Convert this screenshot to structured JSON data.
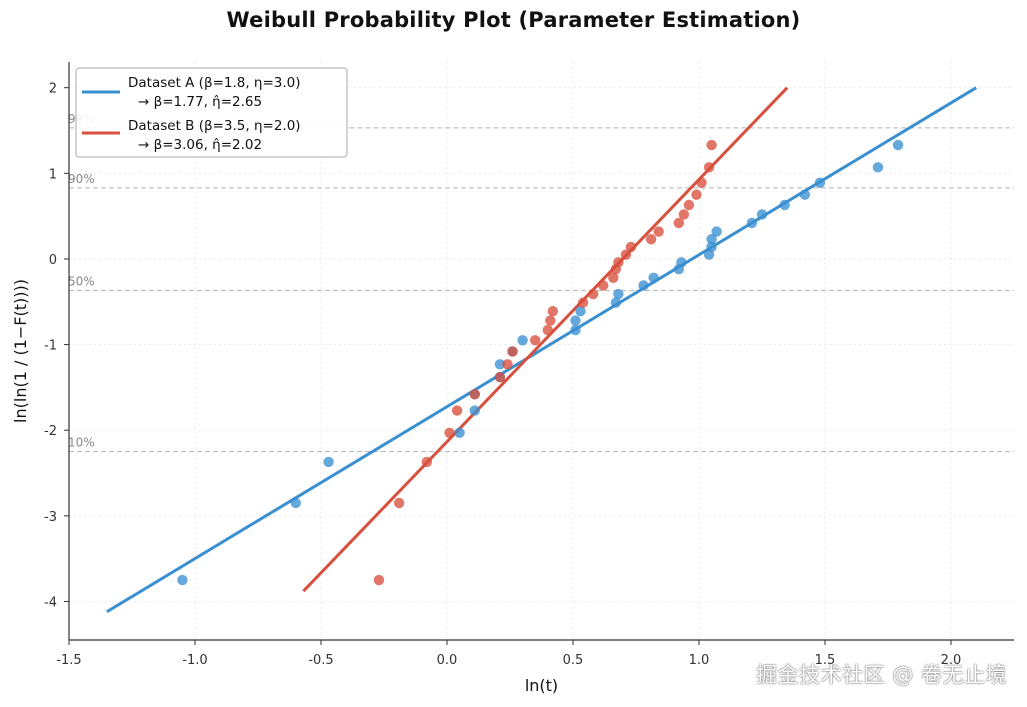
{
  "chart_data": {
    "type": "scatter",
    "title": "Weibull Probability Plot (Parameter Estimation)",
    "xlabel": "ln(t)",
    "ylabel": "ln(ln(1 / (1−F(t))))",
    "xlim": [
      -1.5,
      2.25
    ],
    "ylim": [
      -4.45,
      2.3
    ],
    "xticks": [
      -1.5,
      -1.0,
      -0.5,
      0.0,
      0.5,
      1.0,
      1.5,
      2.0
    ],
    "xtick_labels": [
      "-1.5",
      "-1.0",
      "-0.5",
      "0.0",
      "0.5",
      "1.0",
      "1.5",
      "2.0"
    ],
    "yticks": [
      -4,
      -3,
      -2,
      -1,
      0,
      1,
      2
    ],
    "ytick_labels": [
      "-4",
      "-3",
      "-2",
      "-1",
      "0",
      "1",
      "2"
    ],
    "grid": true,
    "legend_position": "top-left",
    "reference_lines": [
      {
        "label": "10%",
        "y": -2.25
      },
      {
        "label": "50%",
        "y": -0.37
      },
      {
        "label": "90%",
        "y": 0.83
      },
      {
        "label": "99%",
        "y": 1.53
      }
    ],
    "series": [
      {
        "name": "Dataset A",
        "legend_line1": "Dataset A  (β=1.8, η=3.0)",
        "legend_line2": "→ β=1.77, η̂=2.65",
        "color": "#3a8fd1",
        "points": [
          [
            -1.05,
            -3.75
          ],
          [
            -0.6,
            -2.85
          ],
          [
            -0.47,
            -2.37
          ],
          [
            0.05,
            -2.03
          ],
          [
            0.11,
            -1.77
          ],
          [
            0.11,
            -1.58
          ],
          [
            0.21,
            -1.38
          ],
          [
            0.21,
            -1.23
          ],
          [
            0.26,
            -1.08
          ],
          [
            0.3,
            -0.95
          ],
          [
            0.51,
            -0.83
          ],
          [
            0.51,
            -0.72
          ],
          [
            0.53,
            -0.61
          ],
          [
            0.67,
            -0.51
          ],
          [
            0.68,
            -0.41
          ],
          [
            0.78,
            -0.31
          ],
          [
            0.82,
            -0.22
          ],
          [
            0.92,
            -0.12
          ],
          [
            0.93,
            -0.04
          ],
          [
            1.04,
            0.05
          ],
          [
            1.05,
            0.14
          ],
          [
            1.05,
            0.23
          ],
          [
            1.07,
            0.32
          ],
          [
            1.21,
            0.42
          ],
          [
            1.25,
            0.52
          ],
          [
            1.34,
            0.63
          ],
          [
            1.42,
            0.75
          ],
          [
            1.48,
            0.89
          ],
          [
            1.71,
            1.07
          ],
          [
            1.79,
            1.33
          ]
        ],
        "fit_line": [
          [
            -1.35,
            -4.12
          ],
          [
            2.1,
            2.0
          ]
        ]
      },
      {
        "name": "Dataset B",
        "legend_line1": "Dataset B  (β=3.5, η=2.0)",
        "legend_line2": "→ β=3.06, η̂=2.02",
        "color": "#d94f3d",
        "points": [
          [
            -0.27,
            -3.75
          ],
          [
            -0.19,
            -2.85
          ],
          [
            -0.08,
            -2.37
          ],
          [
            0.01,
            -2.03
          ],
          [
            0.04,
            -1.77
          ],
          [
            0.11,
            -1.58
          ],
          [
            0.21,
            -1.38
          ],
          [
            0.24,
            -1.23
          ],
          [
            0.26,
            -1.08
          ],
          [
            0.35,
            -0.95
          ],
          [
            0.4,
            -0.83
          ],
          [
            0.41,
            -0.72
          ],
          [
            0.42,
            -0.61
          ],
          [
            0.54,
            -0.51
          ],
          [
            0.58,
            -0.41
          ],
          [
            0.62,
            -0.31
          ],
          [
            0.66,
            -0.22
          ],
          [
            0.67,
            -0.12
          ],
          [
            0.68,
            -0.04
          ],
          [
            0.71,
            0.05
          ],
          [
            0.73,
            0.14
          ],
          [
            0.81,
            0.23
          ],
          [
            0.84,
            0.32
          ],
          [
            0.92,
            0.42
          ],
          [
            0.94,
            0.52
          ],
          [
            0.96,
            0.63
          ],
          [
            0.99,
            0.75
          ],
          [
            1.01,
            0.89
          ],
          [
            1.04,
            1.07
          ],
          [
            1.05,
            1.33
          ]
        ],
        "fit_line": [
          [
            -0.57,
            -3.88
          ],
          [
            1.35,
            2.0
          ]
        ]
      }
    ]
  },
  "watermark": "掘金技术社区 @ 卷无止境"
}
